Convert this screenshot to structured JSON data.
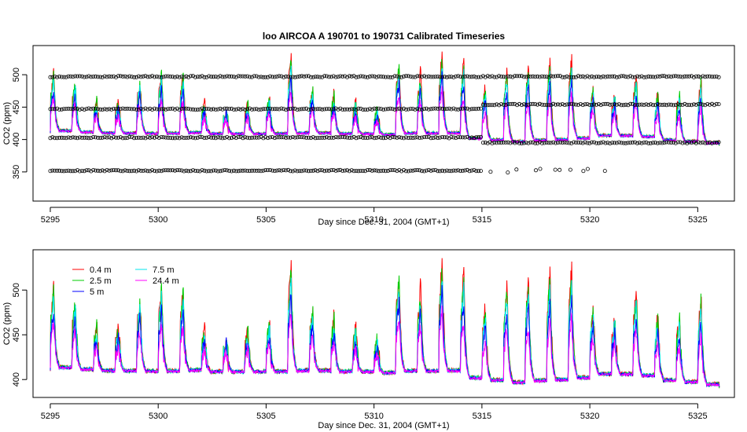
{
  "chart_data": [
    {
      "type": "line",
      "title": "loo   AIRCOA  A    190701  to  190731   Calibrated Timeseries",
      "xlabel": "Day since Dec. 31, 2004 (GMT+1)",
      "ylabel": "CO2 (ppm)",
      "xlim": [
        5294.2,
        5326.7
      ],
      "ylim": [
        305,
        545
      ],
      "xticks": [
        5295,
        5300,
        5305,
        5310,
        5315,
        5320,
        5325
      ],
      "yticks": [
        350,
        400,
        450,
        500
      ],
      "legend": "none",
      "colors": {
        "0.4 m": "#ff0000",
        "2.5 m": "#00cc00",
        "5 m": "#0000ff",
        "7.5 m": "#00e5ee",
        "24.4 m": "#ff00ff",
        "calibration": "#000000"
      },
      "calibration_points": {
        "marker": "open-circle",
        "levels_ppm": [
          352,
          403,
          447,
          497
        ],
        "after_day_5315": [
          395,
          454,
          497
        ],
        "stray_cal_days": [
          5315.4,
          5316.2,
          5316.6,
          5317.5,
          5317.7,
          5318.4,
          5318.6,
          5319.1,
          5319.7,
          5319.9,
          5320.7
        ]
      },
      "series_description_ref": "shared with panel 2"
    },
    {
      "type": "line",
      "title": "",
      "xlabel": "Day since Dec. 31, 2004 (GMT+1)",
      "ylabel": "CO2 (ppm)",
      "xlim": [
        5294.2,
        5326.7
      ],
      "ylim": [
        380,
        545
      ],
      "xticks": [
        5295,
        5300,
        5305,
        5310,
        5315,
        5320,
        5325
      ],
      "yticks": [
        400,
        450,
        500
      ],
      "legend": "top-left",
      "series": [
        {
          "name": "0.4 m",
          "color": "#ff0000"
        },
        {
          "name": "2.5 m",
          "color": "#00cc00"
        },
        {
          "name": "5 m",
          "color": "#0000ff"
        },
        {
          "name": "7.5 m",
          "color": "#00e5ee"
        },
        {
          "name": "24.4 m",
          "color": "#ff00ff"
        }
      ],
      "daily_peaks": {
        "days": [
          5295,
          5296,
          5297,
          5298,
          5299,
          5300,
          5301,
          5302,
          5303,
          5304,
          5305,
          5306,
          5307,
          5308,
          5309,
          5310,
          5311,
          5312,
          5313,
          5314,
          5315,
          5316,
          5317,
          5318,
          5319,
          5320,
          5321,
          5322,
          5323,
          5324,
          5325,
          5326
        ],
        "peak_ppm": [
          505,
          490,
          460,
          460,
          493,
          505,
          500,
          455,
          450,
          455,
          465,
          530,
          480,
          470,
          455,
          445,
          520,
          505,
          535,
          520,
          480,
          510,
          515,
          520,
          525,
          480,
          470,
          500,
          475,
          470,
          495,
          475
        ],
        "baseline_ppm": [
          412,
          410,
          409,
          409,
          408,
          408,
          409,
          408,
          408,
          408,
          408,
          408,
          409,
          408,
          408,
          407,
          408,
          408,
          408,
          400,
          398,
          395,
          397,
          398,
          400,
          405,
          405,
          403,
          398,
          396,
          393,
          392
        ]
      }
    }
  ]
}
